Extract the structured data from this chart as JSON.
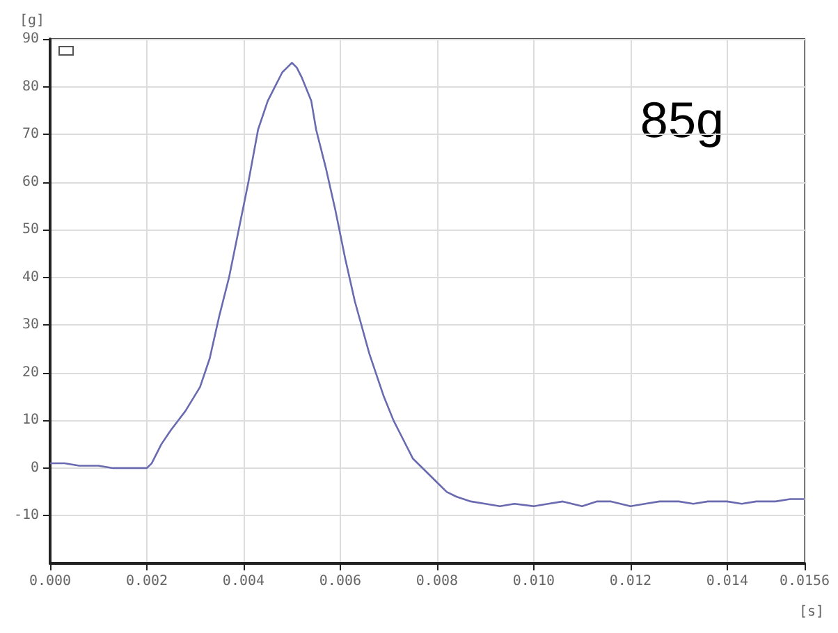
{
  "chart_data": {
    "type": "line",
    "xlabel": "[s]",
    "ylabel": "[g]",
    "annotations": [
      "85g"
    ],
    "x": [
      0,
      0.0003,
      0.0006,
      0.001,
      0.0013,
      0.0016,
      0.002,
      0.0021,
      0.0023,
      0.0025,
      0.0028,
      0.0031,
      0.0033,
      0.0035,
      0.0037,
      0.0039,
      0.0041,
      0.0043,
      0.0045,
      0.0046,
      0.0048,
      0.0049,
      0.005,
      0.0051,
      0.0052,
      0.0054,
      0.0055,
      0.0057,
      0.0059,
      0.0061,
      0.0063,
      0.0066,
      0.0069,
      0.0071,
      0.0073,
      0.0075,
      0.0078,
      0.008,
      0.0082,
      0.0084,
      0.0087,
      0.009,
      0.0093,
      0.0096,
      0.01,
      0.0103,
      0.0106,
      0.011,
      0.0113,
      0.0116,
      0.012,
      0.0123,
      0.0126,
      0.013,
      0.0133,
      0.0136,
      0.014,
      0.0143,
      0.0146,
      0.015,
      0.0153,
      0.0156
    ],
    "series": [
      {
        "color": "#6a6ab0",
        "values": [
          1,
          1,
          0.5,
          0.5,
          0,
          0,
          0,
          1,
          5,
          8,
          12,
          17,
          23,
          32,
          40,
          50,
          60,
          71,
          77,
          79,
          83,
          84,
          85,
          84,
          82,
          77,
          71,
          63,
          54,
          44,
          35,
          24,
          15,
          10,
          6,
          2,
          -1,
          -3,
          -5,
          -6,
          -7,
          -7.5,
          -8,
          -7.5,
          -8,
          -7.5,
          -7,
          -8,
          -7,
          -7,
          -8,
          -7.5,
          -7,
          -7,
          -7.5,
          -7,
          -7,
          -7.5,
          -7,
          -7,
          -6.5,
          -6.5
        ]
      }
    ],
    "xlim": [
      0,
      0.0156
    ],
    "xticks": [
      {
        "value": 0,
        "label": "0.000"
      },
      {
        "value": 0.002,
        "label": "0.002"
      },
      {
        "value": 0.004,
        "label": "0.004"
      },
      {
        "value": 0.006,
        "label": "0.006"
      },
      {
        "value": 0.008,
        "label": "0.008"
      },
      {
        "value": 0.01,
        "label": "0.010"
      },
      {
        "value": 0.012,
        "label": "0.012"
      },
      {
        "value": 0.014,
        "label": "0.014"
      },
      {
        "value": 0.0156,
        "label": "0.0156"
      }
    ],
    "ylim": [
      -20,
      90
    ],
    "yticks": [
      -10,
      0,
      10,
      20,
      30,
      40,
      50,
      60,
      70,
      80,
      90
    ],
    "grid": true
  }
}
